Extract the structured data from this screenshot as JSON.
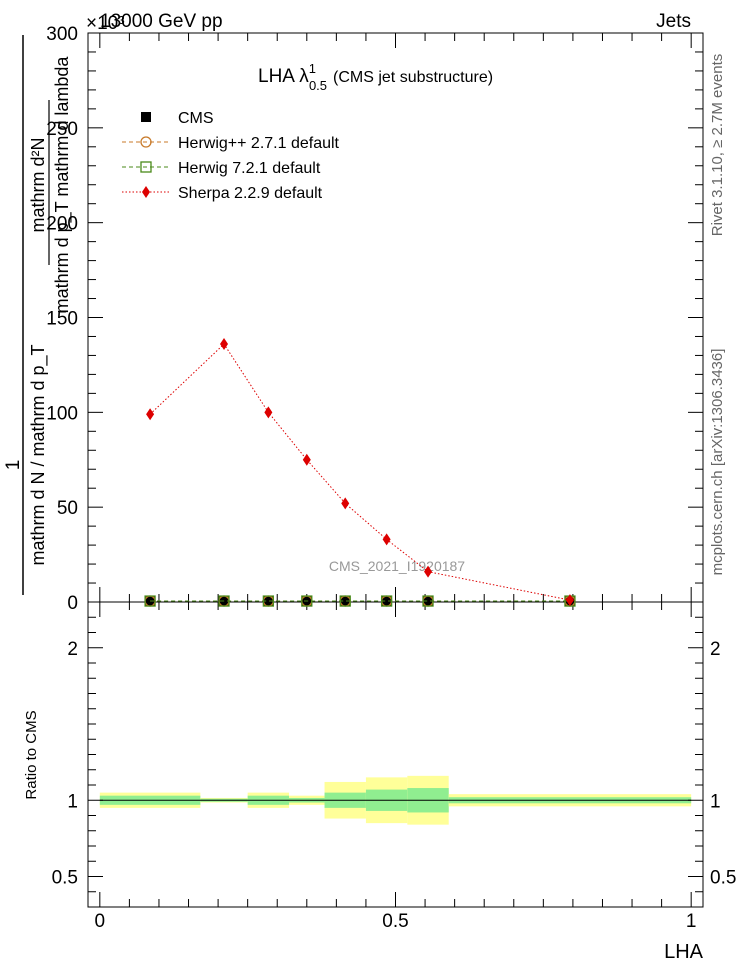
{
  "header": {
    "energy_label": "13000 GeV pp",
    "exponent_label": "×10³",
    "process_label": "Jets"
  },
  "side_text": {
    "rivet": "Rivet 3.1.10, ≥ 2.7M events",
    "mcplots": "mcplots.cern.ch [arXiv:1306.3436]"
  },
  "watermark": "CMS_2021_I1920187",
  "chart_data": [
    {
      "type": "line",
      "title": "LHA λ",
      "title_sup": "1",
      "title_sub": "0.5",
      "title_suffix": "(CMS jet substructure)",
      "ylabel_numerator": "1",
      "ylabel_denominator": "mathrm d N / mathrm d p_T",
      "ylabel_right_num": "mathrm d²N",
      "ylabel_right_den": "mathrm d p_T mathrm d lambda",
      "ylim": [
        0,
        300
      ],
      "yticks": [
        0,
        50,
        100,
        150,
        200,
        250,
        300
      ],
      "xlim": [
        -0.02,
        1.02
      ],
      "legend_position": "top-left",
      "legend": [
        {
          "label": "CMS",
          "marker": "square-filled",
          "color": "#000000"
        },
        {
          "label": "Herwig++ 2.7.1 default",
          "marker": "circle-open",
          "color": "#c87a2a"
        },
        {
          "label": "Herwig 7.2.1 default",
          "marker": "square-open",
          "color": "#4a8a1a"
        },
        {
          "label": "Sherpa 2.2.9 default",
          "marker": "diamond-filled",
          "color": "#dd0000"
        }
      ],
      "series": [
        {
          "name": "CMS",
          "color": "#000000",
          "x": [
            0.085,
            0.21,
            0.285,
            0.35,
            0.415,
            0.485,
            0.555,
            0.795
          ],
          "y": [
            0.5,
            0.5,
            0.5,
            0.5,
            0.5,
            0.5,
            0.5,
            0.5
          ]
        },
        {
          "name": "Herwig++ 2.7.1 default",
          "color": "#c87a2a",
          "x": [
            0.085,
            0.21,
            0.285,
            0.35,
            0.415,
            0.485,
            0.555,
            0.795
          ],
          "y": [
            0.5,
            0.5,
            0.5,
            0.5,
            0.5,
            0.5,
            0.5,
            0.5
          ]
        },
        {
          "name": "Herwig 7.2.1 default",
          "color": "#4a8a1a",
          "x": [
            0.085,
            0.21,
            0.285,
            0.35,
            0.415,
            0.485,
            0.555,
            0.795
          ],
          "y": [
            0.5,
            0.5,
            0.5,
            0.5,
            0.5,
            0.5,
            0.5,
            0.5
          ]
        },
        {
          "name": "Sherpa 2.2.9 default",
          "color": "#dd0000",
          "x": [
            0.085,
            0.21,
            0.285,
            0.35,
            0.415,
            0.485,
            0.555,
            0.795
          ],
          "y": [
            99,
            136,
            100,
            75,
            52,
            33,
            16,
            1
          ]
        }
      ]
    },
    {
      "type": "area",
      "xlabel": "LHA",
      "ylabel": "Ratio to CMS",
      "ylim": [
        0.3,
        2.3
      ],
      "yticks": [
        0.5,
        1,
        2
      ],
      "xlim": [
        -0.02,
        1.02
      ],
      "xticks": [
        0,
        0.5,
        1
      ],
      "reference": 1,
      "bands": {
        "bins": [
          [
            0,
            0.17
          ],
          [
            0.17,
            0.25
          ],
          [
            0.25,
            0.32
          ],
          [
            0.32,
            0.38
          ],
          [
            0.38,
            0.45
          ],
          [
            0.45,
            0.52
          ],
          [
            0.52,
            0.59
          ],
          [
            0.59,
            1.0
          ]
        ],
        "inner_halfwidth": [
          0.03,
          0.01,
          0.03,
          0.015,
          0.05,
          0.07,
          0.08,
          0.02
        ],
        "outer_halfwidth": [
          0.05,
          0.015,
          0.05,
          0.03,
          0.12,
          0.15,
          0.16,
          0.04
        ],
        "inner_color": "#90ee90",
        "outer_color": "#ffff99"
      }
    }
  ]
}
